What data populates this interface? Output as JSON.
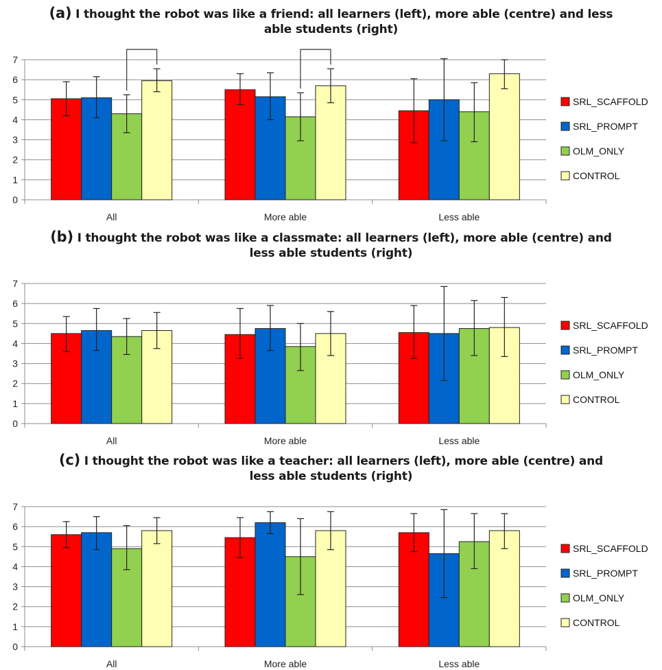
{
  "colors": {
    "SRL_SCAFFOLD": "#ff0000",
    "SRL_PROMPT": "#0066cc",
    "OLM_ONLY": "#92d050",
    "CONTROL": "#ffffb3"
  },
  "chart_data": [
    {
      "type": "bar",
      "tag": "(a)",
      "title_line1": "I thought the robot was like a friend: all learners (left), more able (centre) and less",
      "title_line2": "able students (right)",
      "categories": [
        "All",
        "More able",
        "Less able"
      ],
      "ylim": [
        0,
        7
      ],
      "yticks": [
        "0",
        "1",
        "2",
        "3",
        "4",
        "5",
        "6",
        "7"
      ],
      "grid": true,
      "legend_position": "right",
      "series": [
        {
          "name": "SRL_SCAFFOLD",
          "values": [
            5.05,
            5.5,
            4.45
          ],
          "err_low": [
            4.2,
            4.75,
            2.85
          ],
          "err_high": [
            5.9,
            6.3,
            6.05
          ]
        },
        {
          "name": "SRL_PROMPT",
          "values": [
            5.1,
            5.15,
            5.0
          ],
          "err_low": [
            4.1,
            4.0,
            2.95
          ],
          "err_high": [
            6.15,
            6.35,
            7.05
          ]
        },
        {
          "name": "OLM_ONLY",
          "values": [
            4.3,
            4.15,
            4.4
          ],
          "err_low": [
            3.35,
            2.95,
            2.9
          ],
          "err_high": [
            5.25,
            5.35,
            5.85
          ]
        },
        {
          "name": "CONTROL",
          "values": [
            5.95,
            5.7,
            6.3
          ],
          "err_low": [
            5.4,
            4.85,
            5.55
          ],
          "err_high": [
            6.55,
            6.55,
            7.0
          ]
        }
      ],
      "significance_brackets": [
        {
          "category": 0,
          "from_series": 2,
          "to_series": 3
        },
        {
          "category": 1,
          "from_series": 2,
          "to_series": 3
        }
      ]
    },
    {
      "type": "bar",
      "tag": "(b)",
      "title_line1": "I thought the robot was like a classmate: all learners (left), more able (centre) and",
      "title_line2": "less able students (right)",
      "categories": [
        "All",
        "More able",
        "Less able"
      ],
      "ylim": [
        0,
        7
      ],
      "yticks": [
        "0",
        "1",
        "2",
        "3",
        "4",
        "5",
        "6",
        "7"
      ],
      "grid": true,
      "legend_position": "right",
      "series": [
        {
          "name": "SRL_SCAFFOLD",
          "values": [
            4.5,
            4.45,
            4.55
          ],
          "err_low": [
            3.6,
            3.25,
            3.25
          ],
          "err_high": [
            5.35,
            5.75,
            5.9
          ]
        },
        {
          "name": "SRL_PROMPT",
          "values": [
            4.65,
            4.75,
            4.5
          ],
          "err_low": [
            3.65,
            3.65,
            2.15
          ],
          "err_high": [
            5.75,
            5.9,
            6.85
          ]
        },
        {
          "name": "OLM_ONLY",
          "values": [
            4.35,
            3.85,
            4.75
          ],
          "err_low": [
            3.45,
            2.65,
            3.4
          ],
          "err_high": [
            5.25,
            5.0,
            6.15
          ]
        },
        {
          "name": "CONTROL",
          "values": [
            4.65,
            4.5,
            4.8
          ],
          "err_low": [
            3.75,
            3.4,
            3.35
          ],
          "err_high": [
            5.55,
            5.6,
            6.3
          ]
        }
      ],
      "significance_brackets": []
    },
    {
      "type": "bar",
      "tag": "(c)",
      "title_line1": "I thought the robot was like a teacher: all learners (left), more able (centre) and",
      "title_line2": "less able students (right)",
      "categories": [
        "All",
        "More able",
        "Less able"
      ],
      "ylim": [
        0,
        7
      ],
      "yticks": [
        "0",
        "1",
        "2",
        "3",
        "4",
        "5",
        "6",
        "7"
      ],
      "grid": true,
      "legend_position": "right",
      "series": [
        {
          "name": "SRL_SCAFFOLD",
          "values": [
            5.6,
            5.45,
            5.7
          ],
          "err_low": [
            4.95,
            4.45,
            4.75
          ],
          "err_high": [
            6.25,
            6.45,
            6.65
          ]
        },
        {
          "name": "SRL_PROMPT",
          "values": [
            5.7,
            6.2,
            4.65
          ],
          "err_low": [
            4.85,
            5.65,
            2.45
          ],
          "err_high": [
            6.5,
            6.75,
            6.85
          ]
        },
        {
          "name": "OLM_ONLY",
          "values": [
            4.9,
            4.5,
            5.25
          ],
          "err_low": [
            3.85,
            2.6,
            3.9
          ],
          "err_high": [
            6.05,
            6.4,
            6.65
          ]
        },
        {
          "name": "CONTROL",
          "values": [
            5.8,
            5.8,
            5.8
          ],
          "err_low": [
            5.15,
            4.85,
            4.9
          ],
          "err_high": [
            6.45,
            6.75,
            6.65
          ]
        }
      ],
      "significance_brackets": []
    }
  ]
}
